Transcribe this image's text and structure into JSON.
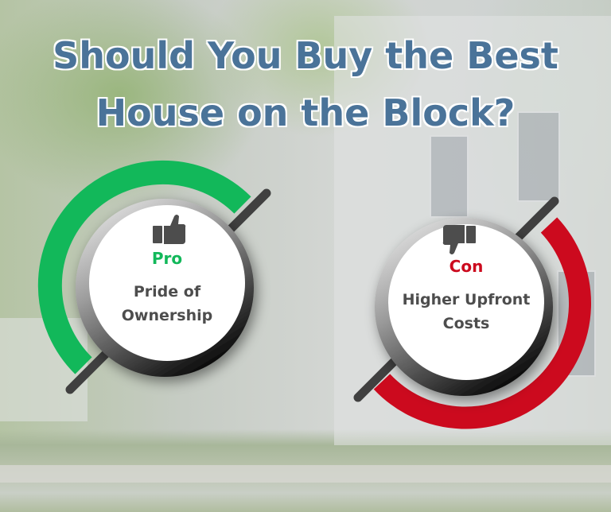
{
  "title": {
    "line1": "Should You Buy the Best",
    "line2": "House on the Block?"
  },
  "colors": {
    "title": "#4a7399",
    "pro": "#12b85a",
    "con": "#cc0a1e",
    "text": "#4d4d4d"
  },
  "pro": {
    "icon": "thumbs-up-icon",
    "label": "Pro",
    "text_line1": "Pride of",
    "text_line2": "Ownership"
  },
  "con": {
    "icon": "thumbs-down-icon",
    "label": "Con",
    "text_line1": "Higher Upfront",
    "text_line2": "Costs"
  }
}
